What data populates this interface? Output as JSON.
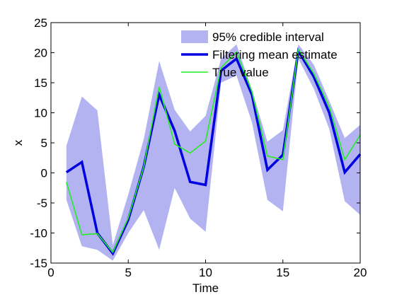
{
  "chart_data": {
    "type": "line",
    "title": "",
    "xlabel": "Time",
    "ylabel": "x",
    "xlim": [
      0,
      20
    ],
    "ylim": [
      -15,
      25
    ],
    "xticks": [
      0,
      5,
      10,
      15,
      20
    ],
    "yticks": [
      -15,
      -10,
      -5,
      0,
      5,
      10,
      15,
      20,
      25
    ],
    "grid": false,
    "legend_position": "top-right",
    "x": [
      1,
      2,
      3,
      4,
      5,
      6,
      7,
      8,
      9,
      10,
      11,
      12,
      13,
      14,
      15,
      16,
      17,
      18,
      19,
      20
    ],
    "band": {
      "name": "95% credible interval",
      "color": "#b3b3f2",
      "upper": [
        4.5,
        12.7,
        10.4,
        -12.0,
        -3.6,
        5.6,
        18.6,
        10.5,
        6.9,
        9.5,
        19.0,
        21.4,
        13.8,
        5.2,
        7.1,
        21.4,
        18.0,
        12.0,
        5.8,
        8.0
      ],
      "lower": [
        -4.5,
        -12.2,
        -12.8,
        -14.6,
        -10.0,
        -6.2,
        -12.8,
        -2.5,
        -7.6,
        -9.8,
        15.0,
        16.2,
        8.4,
        -4.5,
        -6.4,
        19.0,
        14.0,
        7.3,
        -4.7,
        -7.0
      ]
    },
    "series": [
      {
        "name": "Filtering mean estimate",
        "color": "#0000e0",
        "values": [
          0.1,
          1.8,
          -10.0,
          -13.4,
          -7.8,
          1.0,
          13.0,
          7.0,
          -1.5,
          -2.0,
          17.0,
          19.0,
          13.0,
          0.5,
          3.0,
          20.3,
          16.0,
          10.0,
          0.1,
          3.1
        ]
      },
      {
        "name": "True value",
        "color": "#22ee22",
        "values": [
          -1.5,
          -10.3,
          -10.1,
          -13.2,
          -7.5,
          1.0,
          14.3,
          4.8,
          3.3,
          5.3,
          17.5,
          20.1,
          13.5,
          2.8,
          2.2,
          20.6,
          16.5,
          11.0,
          2.2,
          6.3
        ]
      }
    ]
  }
}
